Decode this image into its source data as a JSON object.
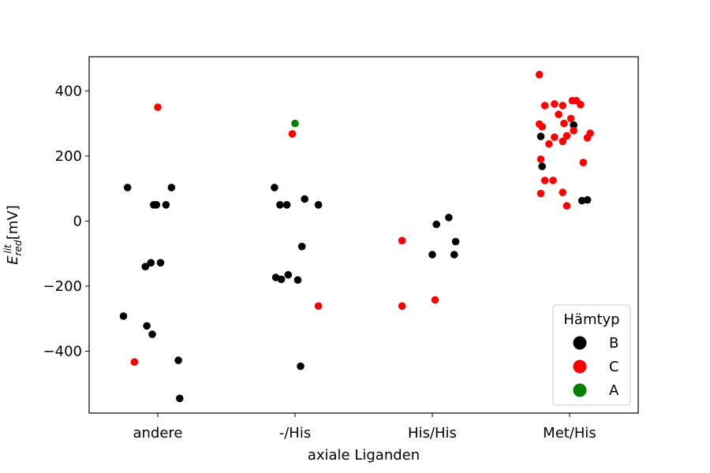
{
  "chart_data": {
    "type": "scatter",
    "xlabel": "axiale Liganden",
    "ylabel": {
      "main": "E",
      "sup": "lit",
      "sub": "red",
      "unit": "[mV]"
    },
    "categories": [
      "andere",
      "-/His",
      "His/His",
      "Met/His"
    ],
    "ylim": [
      -590,
      505
    ],
    "yticks": [
      400,
      200,
      0,
      -200,
      -400
    ],
    "ytick_labels": [
      "400",
      "200",
      "0",
      "−200",
      "−400"
    ],
    "grid": false,
    "legend": {
      "title": "Hämtyp",
      "placement": "lower-right",
      "entries": [
        {
          "label": "B",
          "color": "#000000"
        },
        {
          "label": "C",
          "color": "#ff0000"
        },
        {
          "label": "A",
          "color": "#008000"
        }
      ]
    },
    "series": [
      {
        "category": "andere",
        "points": [
          {
            "jitter": 0.0,
            "y": 350,
            "group": "C"
          },
          {
            "jitter": -0.22,
            "y": 103,
            "group": "B"
          },
          {
            "jitter": 0.1,
            "y": 103,
            "group": "B"
          },
          {
            "jitter": -0.03,
            "y": 50,
            "group": "B"
          },
          {
            "jitter": 0.06,
            "y": 50,
            "group": "B"
          },
          {
            "jitter": -0.01,
            "y": 50,
            "group": "B"
          },
          {
            "jitter": -0.09,
            "y": -140,
            "group": "B"
          },
          {
            "jitter": -0.05,
            "y": -128,
            "group": "B"
          },
          {
            "jitter": 0.02,
            "y": -128,
            "group": "B"
          },
          {
            "jitter": -0.25,
            "y": -292,
            "group": "B"
          },
          {
            "jitter": -0.08,
            "y": -322,
            "group": "B"
          },
          {
            "jitter": -0.04,
            "y": -348,
            "group": "B"
          },
          {
            "jitter": -0.17,
            "y": -433,
            "group": "C"
          },
          {
            "jitter": 0.15,
            "y": -428,
            "group": "B"
          },
          {
            "jitter": 0.16,
            "y": -545,
            "group": "B"
          }
        ]
      },
      {
        "category": "-/His",
        "points": [
          {
            "jitter": 0.0,
            "y": 300,
            "group": "A"
          },
          {
            "jitter": -0.02,
            "y": 268,
            "group": "C"
          },
          {
            "jitter": -0.15,
            "y": 103,
            "group": "B"
          },
          {
            "jitter": 0.07,
            "y": 68,
            "group": "B"
          },
          {
            "jitter": -0.11,
            "y": 50,
            "group": "B"
          },
          {
            "jitter": -0.06,
            "y": 50,
            "group": "B"
          },
          {
            "jitter": 0.17,
            "y": 50,
            "group": "B"
          },
          {
            "jitter": 0.05,
            "y": -78,
            "group": "B"
          },
          {
            "jitter": -0.05,
            "y": -165,
            "group": "B"
          },
          {
            "jitter": -0.14,
            "y": -173,
            "group": "B"
          },
          {
            "jitter": -0.1,
            "y": -179,
            "group": "B"
          },
          {
            "jitter": 0.02,
            "y": -181,
            "group": "B"
          },
          {
            "jitter": 0.17,
            "y": -261,
            "group": "C"
          },
          {
            "jitter": 0.04,
            "y": -446,
            "group": "B"
          }
        ]
      },
      {
        "category": "His/His",
        "points": [
          {
            "jitter": 0.12,
            "y": 11,
            "group": "B"
          },
          {
            "jitter": 0.03,
            "y": -10,
            "group": "B"
          },
          {
            "jitter": -0.22,
            "y": -60,
            "group": "C"
          },
          {
            "jitter": 0.17,
            "y": -63,
            "group": "B"
          },
          {
            "jitter": 0.0,
            "y": -103,
            "group": "B"
          },
          {
            "jitter": 0.16,
            "y": -103,
            "group": "B"
          },
          {
            "jitter": 0.02,
            "y": -242,
            "group": "C"
          },
          {
            "jitter": -0.22,
            "y": -261,
            "group": "C"
          }
        ]
      },
      {
        "category": "Met/His",
        "points": [
          {
            "jitter": -0.22,
            "y": 450,
            "group": "C"
          },
          {
            "jitter": 0.02,
            "y": 370,
            "group": "C"
          },
          {
            "jitter": -0.18,
            "y": 355,
            "group": "C"
          },
          {
            "jitter": -0.11,
            "y": 360,
            "group": "C"
          },
          {
            "jitter": -0.05,
            "y": 355,
            "group": "C"
          },
          {
            "jitter": 0.08,
            "y": 358,
            "group": "C"
          },
          {
            "jitter": 0.05,
            "y": 370,
            "group": "C"
          },
          {
            "jitter": -0.08,
            "y": 328,
            "group": "C"
          },
          {
            "jitter": -0.22,
            "y": 298,
            "group": "C"
          },
          {
            "jitter": 0.01,
            "y": 315,
            "group": "C"
          },
          {
            "jitter": -0.04,
            "y": 300,
            "group": "C"
          },
          {
            "jitter": 0.03,
            "y": 295,
            "group": "B"
          },
          {
            "jitter": -0.2,
            "y": 290,
            "group": "C"
          },
          {
            "jitter": 0.03,
            "y": 278,
            "group": "C"
          },
          {
            "jitter": 0.15,
            "y": 270,
            "group": "C"
          },
          {
            "jitter": -0.21,
            "y": 260,
            "group": "B"
          },
          {
            "jitter": -0.11,
            "y": 258,
            "group": "C"
          },
          {
            "jitter": -0.02,
            "y": 262,
            "group": "C"
          },
          {
            "jitter": 0.13,
            "y": 256,
            "group": "C"
          },
          {
            "jitter": -0.15,
            "y": 237,
            "group": "C"
          },
          {
            "jitter": -0.05,
            "y": 245,
            "group": "C"
          },
          {
            "jitter": -0.21,
            "y": 190,
            "group": "C"
          },
          {
            "jitter": 0.1,
            "y": 180,
            "group": "C"
          },
          {
            "jitter": -0.2,
            "y": 168,
            "group": "B"
          },
          {
            "jitter": -0.18,
            "y": 125,
            "group": "C"
          },
          {
            "jitter": -0.12,
            "y": 125,
            "group": "C"
          },
          {
            "jitter": -0.05,
            "y": 88,
            "group": "C"
          },
          {
            "jitter": -0.21,
            "y": 85,
            "group": "C"
          },
          {
            "jitter": 0.09,
            "y": 63,
            "group": "B"
          },
          {
            "jitter": 0.13,
            "y": 65,
            "group": "B"
          },
          {
            "jitter": -0.02,
            "y": 47,
            "group": "C"
          }
        ]
      }
    ]
  }
}
